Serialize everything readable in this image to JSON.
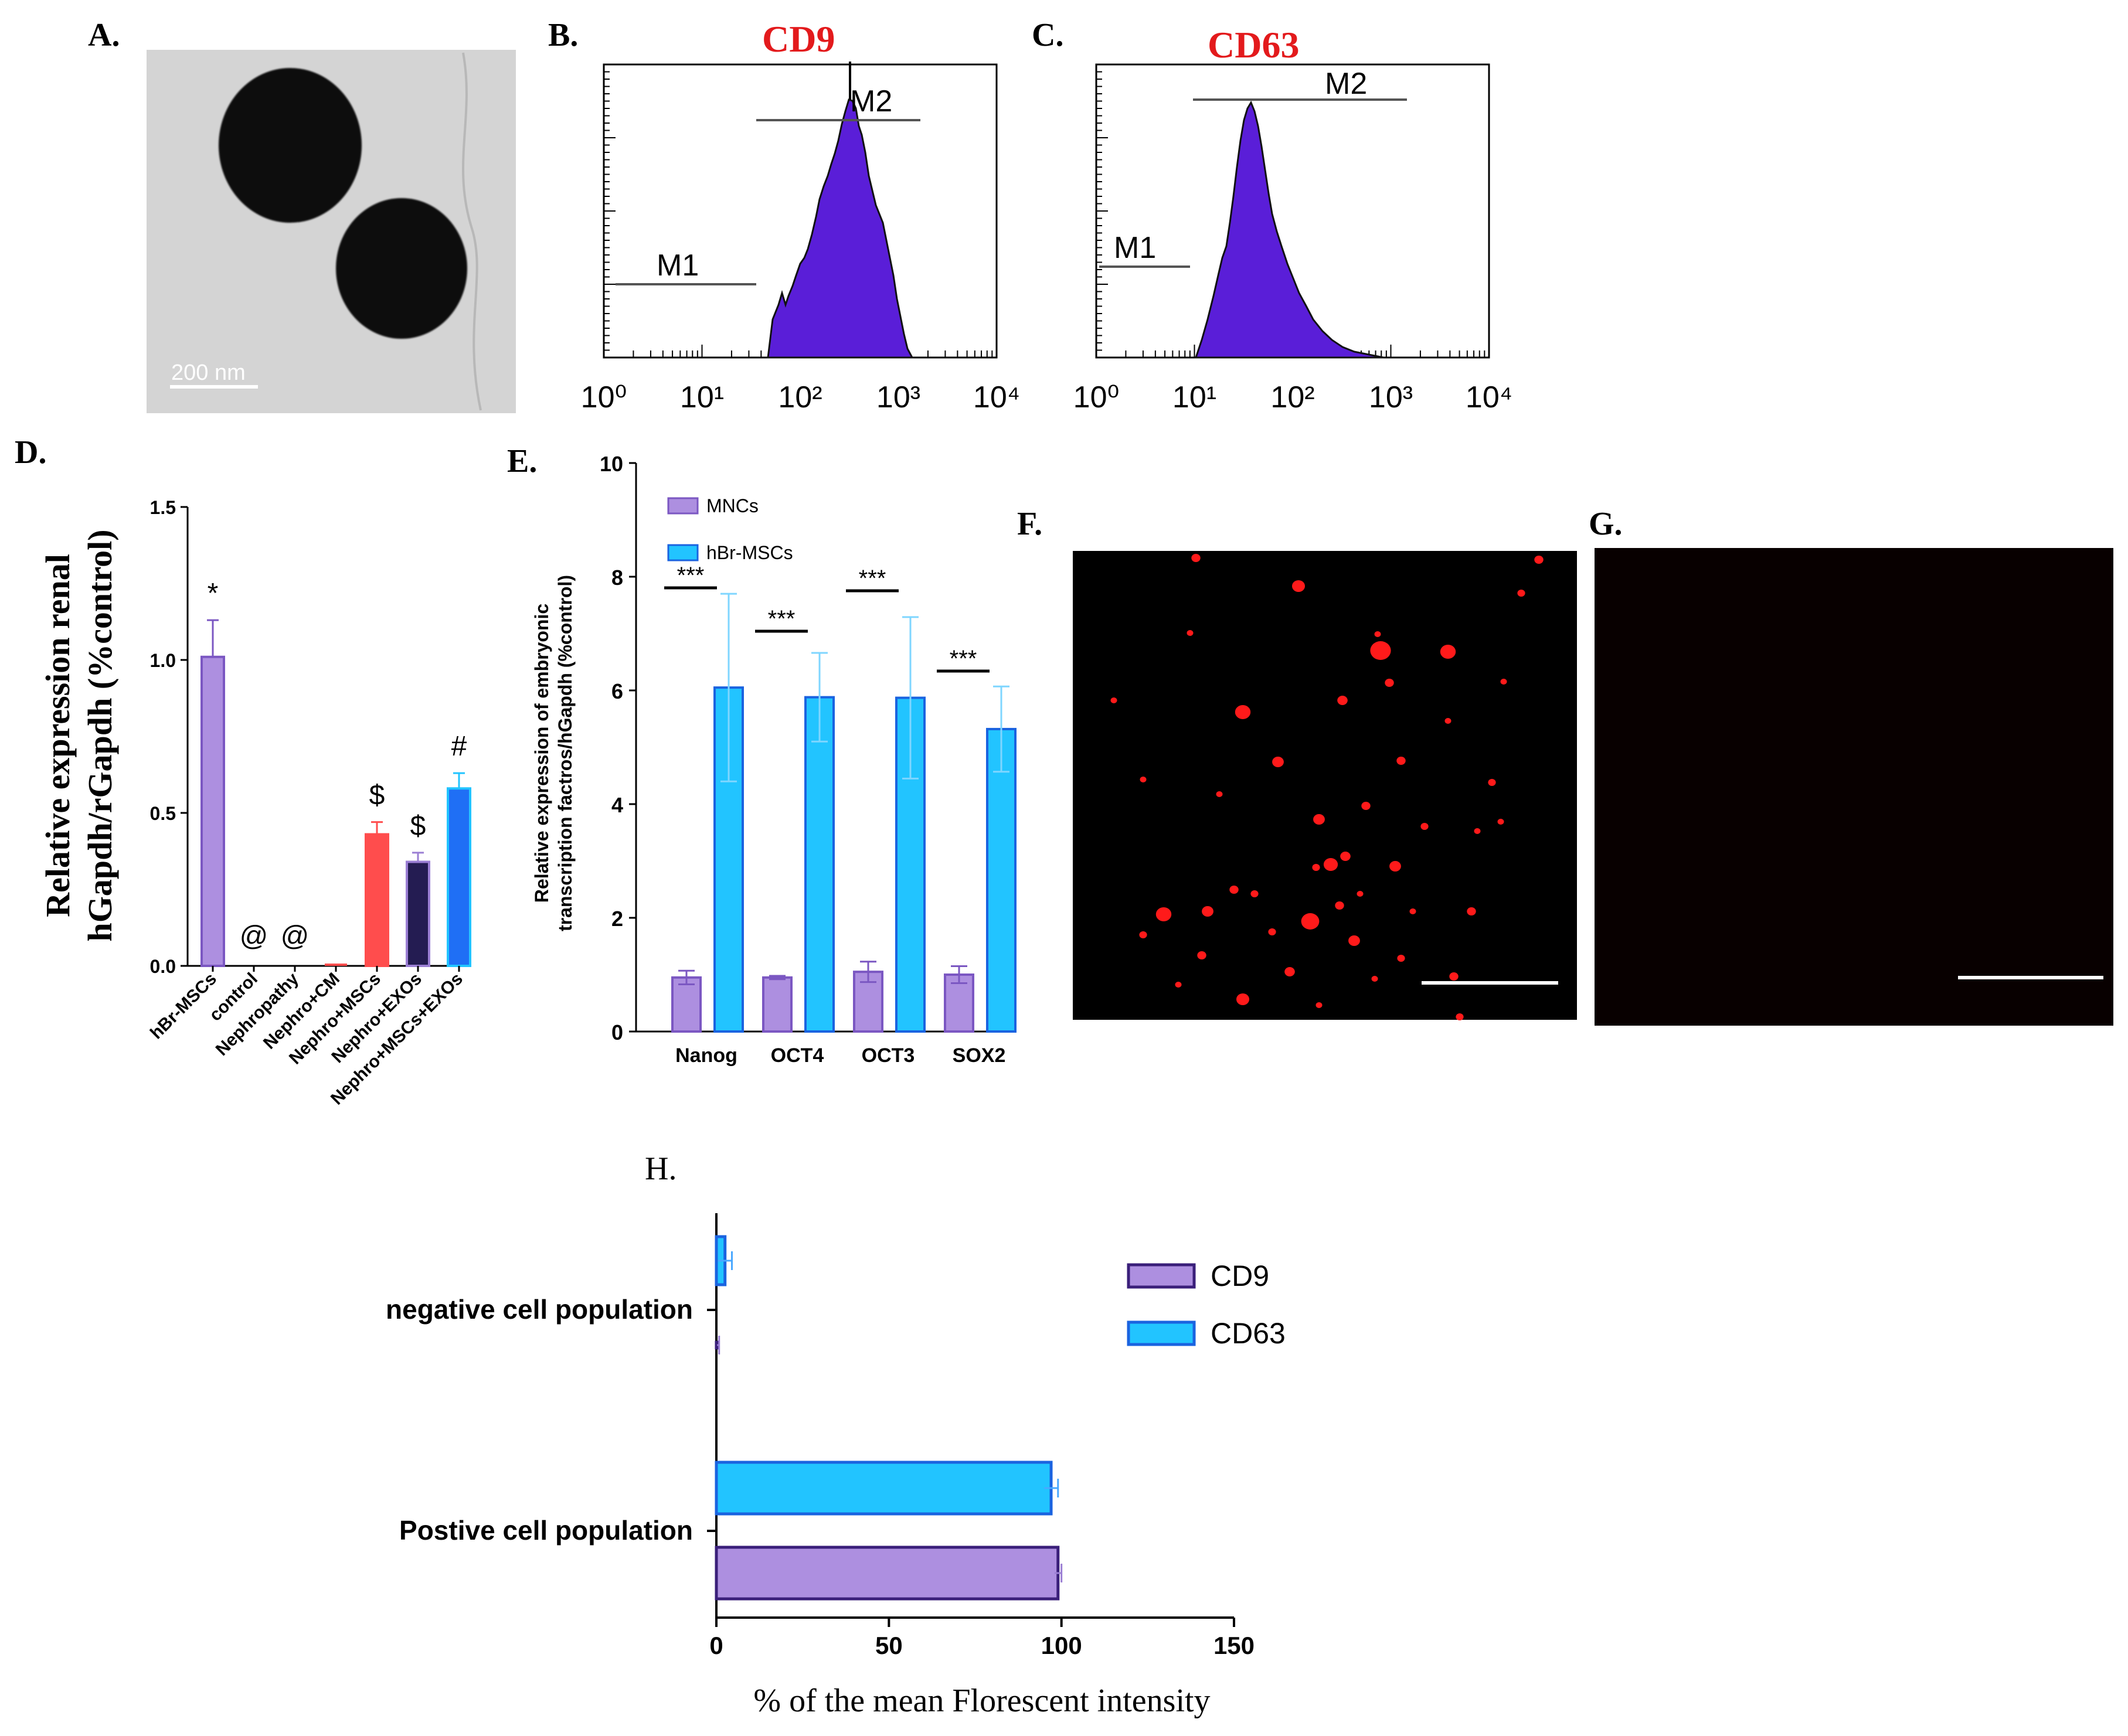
{
  "figure": {
    "panels": {
      "a": {
        "label": "A.",
        "scale_text": "200 nm"
      },
      "b": {
        "label": "B.",
        "title": "CD9",
        "marker1": "M1",
        "marker2": "M2"
      },
      "c": {
        "label": "C.",
        "title": "CD63",
        "marker1": "M1",
        "marker2": "M2"
      },
      "d": {
        "label": "D."
      },
      "e": {
        "label": "E."
      },
      "f": {
        "label": "F."
      },
      "g": {
        "label": "G."
      },
      "h": {
        "label": "H."
      }
    },
    "colors": {
      "title_red": "#e31a1c",
      "histogram_fill": "#5a1ed8",
      "lavender": "#ad8fe0",
      "lavender_edge": "#7b57c2",
      "cyan": "#22c4ff",
      "cyan_edge": "#1a63e0",
      "red_bar": "#ff4d4d",
      "navy_bar": "#241c52",
      "blue_bar": "#1f6ff5",
      "fluor_red": "#ff1a1a"
    }
  },
  "chart_data": [
    {
      "id": "B",
      "type": "histogram",
      "title": "CD9",
      "x_scale": "log",
      "x_ticks": [
        "10⁰",
        "10¹",
        "10²",
        "10³",
        "10⁴"
      ],
      "markers": [
        {
          "name": "M1",
          "range": [
            1,
            30
          ]
        },
        {
          "name": "M2",
          "range": [
            30,
            1200
          ]
        }
      ],
      "peak_location": 300
    },
    {
      "id": "C",
      "type": "histogram",
      "title": "CD63",
      "x_scale": "log",
      "x_ticks": [
        "10⁰",
        "10¹",
        "10²",
        "10³",
        "10⁴"
      ],
      "markers": [
        {
          "name": "M1",
          "range": [
            1,
            8
          ]
        },
        {
          "name": "M2",
          "range": [
            8,
            1600
          ]
        }
      ],
      "peak_location": 40
    },
    {
      "id": "D",
      "type": "bar",
      "ylabel": [
        "Relative expression renal",
        "hGapdh/rGapdh (%control)"
      ],
      "ylim": [
        0,
        1.5
      ],
      "yticks": [
        "0.0",
        "0.5",
        "1.0",
        "1.5"
      ],
      "categories": [
        "hBr-MSCs",
        "control",
        "Nephropathy",
        "Nephro+CM",
        "Nephro+MSCs",
        "Nephro+EXOs",
        "Nephro+MSCs+EXOs"
      ],
      "values": [
        1.01,
        0,
        0,
        0,
        0.43,
        0.34,
        0.58
      ],
      "errors": [
        0.12,
        0,
        0,
        0,
        0.04,
        0.03,
        0.05
      ],
      "annotations": [
        "*",
        "@",
        "@",
        "",
        "$",
        "$",
        "#"
      ]
    },
    {
      "id": "E",
      "type": "bar",
      "ylabel": [
        "Relative expression of embryonic",
        "transcription factros/hGapdh (%control)"
      ],
      "ylim": [
        0,
        10
      ],
      "yticks": [
        "0",
        "2",
        "4",
        "6",
        "8",
        "10"
      ],
      "categories": [
        "Nanog",
        "OCT4",
        "OCT3",
        "SOX2"
      ],
      "series": [
        {
          "name": "MNCs",
          "values": [
            0.95,
            0.95,
            1.05,
            1.0
          ],
          "errors": [
            0.12,
            0.03,
            0.18,
            0.15
          ]
        },
        {
          "name": "hBr-MSCs",
          "values": [
            6.05,
            5.88,
            5.87,
            5.32
          ],
          "errors": [
            1.65,
            0.78,
            1.42,
            0.75
          ]
        }
      ],
      "significance": [
        "***",
        "***",
        "***",
        "***"
      ]
    },
    {
      "id": "H",
      "type": "bar",
      "orientation": "horizontal",
      "xlabel": "% of the mean Florescent intensity",
      "xlim": [
        0,
        150
      ],
      "xticks": [
        "0",
        "50",
        "100",
        "150"
      ],
      "categories": [
        "negative cell population",
        "Postive cell population"
      ],
      "series": [
        {
          "name": "CD9",
          "values": [
            0.5,
            99
          ],
          "errors": [
            0.3,
            1.0
          ]
        },
        {
          "name": "CD63",
          "values": [
            2.5,
            97
          ],
          "errors": [
            2.0,
            2.0
          ]
        }
      ]
    }
  ]
}
